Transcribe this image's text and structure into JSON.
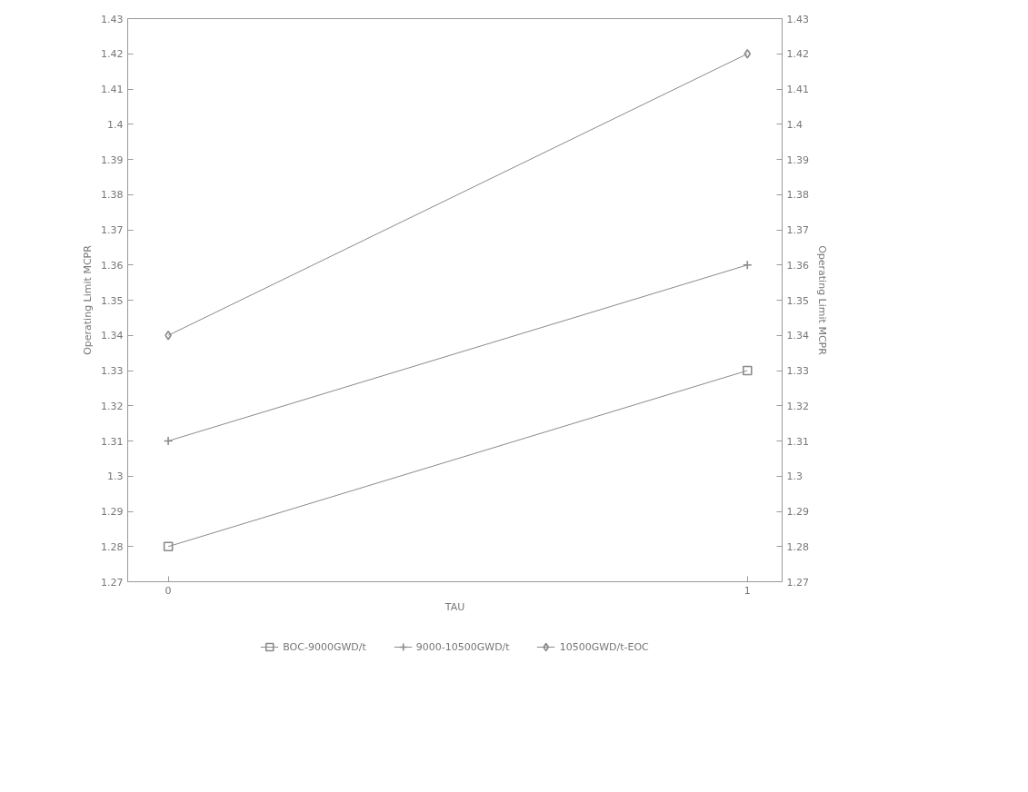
{
  "chart_data": {
    "type": "line",
    "xlabel": "TAU",
    "ylabel": "Operating Limit MCPR",
    "y2label": "Operating Limit MCPR",
    "x": [
      0,
      1
    ],
    "xlim": [
      -0.07,
      1.06
    ],
    "xticks": [
      0,
      1
    ],
    "ylim": [
      1.27,
      1.43
    ],
    "yticks": [
      1.27,
      1.28,
      1.29,
      1.3,
      1.31,
      1.32,
      1.33,
      1.34,
      1.35,
      1.36,
      1.37,
      1.38,
      1.39,
      1.4,
      1.41,
      1.42,
      1.43
    ],
    "y2lim": [
      1.27,
      1.43
    ],
    "y2ticks": [
      1.27,
      1.28,
      1.29,
      1.3,
      1.31,
      1.32,
      1.33,
      1.34,
      1.35,
      1.36,
      1.37,
      1.38,
      1.39,
      1.4,
      1.41,
      1.42,
      1.43
    ],
    "series": [
      {
        "name": "BOC-9000GWD/t",
        "color": "#8a8a8a",
        "marker": "square",
        "values": [
          1.28,
          1.33
        ]
      },
      {
        "name": "9000-10500GWD/t",
        "color": "#8a8a8a",
        "marker": "cross",
        "values": [
          1.31,
          1.36
        ]
      },
      {
        "name": "10500GWD/t-EOC",
        "color": "#8a8a8a",
        "marker": "diamond",
        "values": [
          1.34,
          1.42
        ]
      }
    ],
    "legend": "bottom",
    "grid": false
  }
}
